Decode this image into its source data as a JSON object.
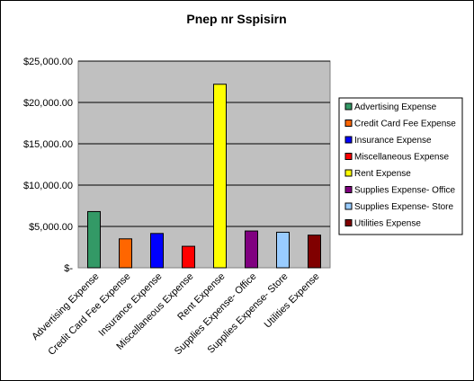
{
  "chart_data": {
    "type": "bar",
    "title": "Pnep nr Sspisirn",
    "xlabel": "",
    "ylabel": "",
    "ylim": [
      0,
      25000
    ],
    "y_ticks": [
      0,
      5000,
      10000,
      15000,
      20000,
      25000
    ],
    "y_tick_labels": [
      "$-",
      "$5,000.00",
      "$10,000.00",
      "$15,000.00",
      "$20,000.00",
      "$25,000.00"
    ],
    "categories": [
      "Advertising Expense",
      "Credit Card Fee Expense",
      "Insurance Expense",
      "Miscellaneous Expense",
      "Rent Expense",
      "Supplies Expense- Office",
      "Supplies Expense- Store",
      "Utilities Expense"
    ],
    "values": [
      6800,
      3500,
      4150,
      2600,
      22200,
      4450,
      4300,
      3950
    ],
    "colors": [
      "#339966",
      "#ff6600",
      "#0000ff",
      "#ff0000",
      "#ffff00",
      "#800080",
      "#99ccff",
      "#800000"
    ],
    "plot_background": "#c0c0c0",
    "grid": true,
    "legend": {
      "position": "right",
      "entries": [
        "Advertising Expense",
        "Credit Card Fee Expense",
        "Insurance Expense",
        "Miscellaneous Expense",
        "Rent Expense",
        "Supplies Expense- Office",
        "Supplies Expense- Store",
        "Utilities Expense"
      ]
    }
  }
}
